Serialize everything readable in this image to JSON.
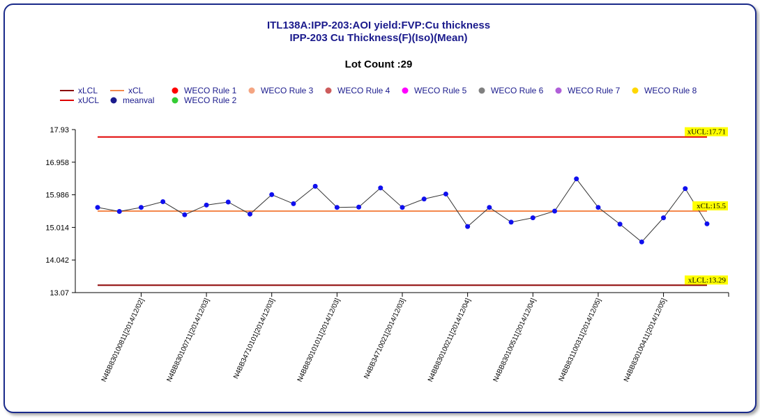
{
  "chart_data": {
    "type": "line",
    "title": "ITL138A:IPP-203:AOI yield:FVP:Cu thickness",
    "subtitle": "IPP-203 Cu Thickness(F)(Iso)(Mean)",
    "lot_count_label": "Lot Count :29",
    "ylim": [
      13.07,
      17.93
    ],
    "y_ticks": [
      "17.93",
      "16.958",
      "15.986",
      "15.014",
      "14.042",
      "13.07"
    ],
    "y_tick_values": [
      17.93,
      16.958,
      15.986,
      15.014,
      14.042,
      13.07
    ],
    "x_tick_labels": [
      "N4BB830100811[2014/12/02]",
      "N4BB830100711[2014/12/03]",
      "N4BB34710101[2014/12/03]",
      "N4BB830101011[2014/12/03]",
      "N4BB34710021[2014/12/03]",
      "N4BB830100211[2014/12/04]",
      "N4BB830100511[2014/12/04]",
      "N4BB831100311[2014/12/05]",
      "N4BB830100411[2014/12/05]"
    ],
    "x_tick_indices": [
      2,
      5,
      8,
      11,
      14,
      17,
      20,
      23,
      26
    ],
    "limits": {
      "xUCL": 17.71,
      "xCL": 15.5,
      "xLCL": 13.29
    },
    "limit_annotations": [
      "xUCL:17.71",
      "xCL:15.5",
      "xLCL:13.29"
    ],
    "series": [
      {
        "name": "meanval",
        "values": [
          15.61,
          15.49,
          15.61,
          15.78,
          15.39,
          15.68,
          15.77,
          15.41,
          15.99,
          15.72,
          16.24,
          15.61,
          15.62,
          16.19,
          15.61,
          15.86,
          16.01,
          15.04,
          15.61,
          15.17,
          15.3,
          15.5,
          16.46,
          15.61,
          15.11,
          14.58,
          15.3,
          16.17,
          15.12
        ]
      }
    ],
    "legend": [
      {
        "label": "xLCL",
        "kind": "line",
        "color": "#8b0000"
      },
      {
        "label": "xCL",
        "kind": "line",
        "color": "#f4884c"
      },
      {
        "label": "WECO Rule 1",
        "kind": "dot",
        "color": "#ff0000"
      },
      {
        "label": "WECO Rule 3",
        "kind": "dot",
        "color": "#f4a582"
      },
      {
        "label": "WECO Rule 4",
        "kind": "dot",
        "color": "#cd5c5c"
      },
      {
        "label": "WECO Rule 5",
        "kind": "dot",
        "color": "#ff00ff"
      },
      {
        "label": "WECO Rule 6",
        "kind": "dot",
        "color": "#808080"
      },
      {
        "label": "WECO Rule 7",
        "kind": "dot",
        "color": "#b05fd8"
      },
      {
        "label": "WECO Rule 8",
        "kind": "dot",
        "color": "#ffd700"
      },
      {
        "label": "xUCL",
        "kind": "line",
        "color": "#e00000"
      },
      {
        "label": "meanval",
        "kind": "dot",
        "color": "#1a1a8c"
      },
      {
        "label": "WECO Rule 2",
        "kind": "dot",
        "color": "#33cc33"
      }
    ],
    "legend_placement": "top",
    "grid": false,
    "colors": {
      "ucl": "#e00000",
      "lcl": "#8b0000",
      "cl": "#f4884c",
      "points": "#1010ee",
      "connector": "#333333",
      "annotation_bg": "#ffff00",
      "title": "#1a1a8c"
    }
  }
}
